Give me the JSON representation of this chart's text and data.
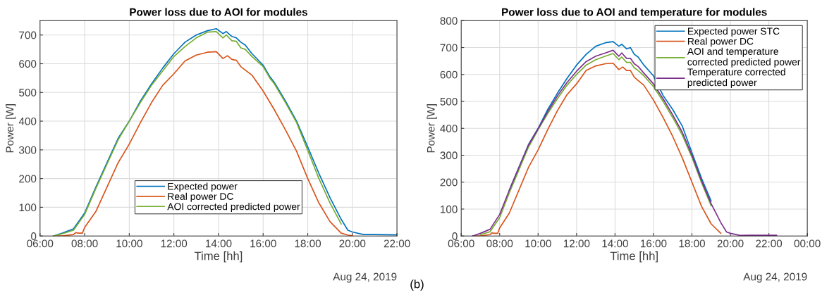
{
  "chart_data": [
    {
      "type": "line",
      "title": "Power loss due to AOI for modules",
      "xlabel": "Time [hh]",
      "ylabel": "Power [W]",
      "annotations": [
        "Aug 24, 2019"
      ],
      "xlim": [
        6,
        22
      ],
      "xticks": [
        {
          "value": 6,
          "label": "06:00"
        },
        {
          "value": 8,
          "label": "08:00"
        },
        {
          "value": 10,
          "label": "10:00"
        },
        {
          "value": 12,
          "label": "12:00"
        },
        {
          "value": 14,
          "label": "14:00"
        },
        {
          "value": 16,
          "label": "16:00"
        },
        {
          "value": 18,
          "label": "18:00"
        },
        {
          "value": 20,
          "label": "20:00"
        },
        {
          "value": 22,
          "label": "22:00"
        }
      ],
      "ylim": [
        0,
        750
      ],
      "yticks": [
        0,
        100,
        200,
        300,
        400,
        500,
        600,
        700
      ],
      "grid": true,
      "legend": "lower center",
      "series": [
        {
          "name": "Expected power",
          "color": "#0072bd",
          "x": [
            6.6,
            7.0,
            7.5,
            8.0,
            8.5,
            9.0,
            9.5,
            10.0,
            10.5,
            11.0,
            11.5,
            12.0,
            12.5,
            13.0,
            13.5,
            13.9,
            14.2,
            14.35,
            14.6,
            14.8,
            15.0,
            15.2,
            15.5,
            16.0,
            16.3,
            16.5,
            17.0,
            17.5,
            18.0,
            18.5,
            19.0,
            19.5,
            19.8,
            20.0,
            20.5,
            21.0,
            22.0
          ],
          "values": [
            0,
            10,
            25,
            80,
            170,
            255,
            340,
            400,
            470,
            530,
            585,
            635,
            675,
            700,
            715,
            722,
            705,
            712,
            695,
            690,
            675,
            665,
            635,
            595,
            555,
            535,
            470,
            400,
            310,
            218,
            133,
            58,
            20,
            14,
            5,
            5,
            4
          ]
        },
        {
          "name": "Real power DC",
          "color": "#d95319",
          "x": [
            6.6,
            7.0,
            7.5,
            7.6,
            7.7,
            7.9,
            8.0,
            8.5,
            9.0,
            9.5,
            10.0,
            10.5,
            11.0,
            11.5,
            12.0,
            12.5,
            13.0,
            13.5,
            13.9,
            14.2,
            14.4,
            14.6,
            14.8,
            15.0,
            15.5,
            16.0,
            16.5,
            17.0,
            17.5,
            18.0,
            18.5,
            19.0,
            19.5,
            19.8,
            20.0
          ],
          "values": [
            0,
            0,
            5,
            12,
            10,
            10,
            30,
            85,
            170,
            255,
            320,
            395,
            465,
            525,
            565,
            610,
            630,
            640,
            642,
            618,
            628,
            615,
            612,
            590,
            560,
            505,
            440,
            370,
            295,
            200,
            115,
            50,
            10,
            3,
            1
          ]
        },
        {
          "name": "AOI corrected predicted power",
          "color": "#77ac30",
          "x": [
            6.6,
            7.0,
            7.5,
            8.0,
            8.5,
            9.0,
            9.5,
            10.0,
            10.5,
            11.0,
            11.5,
            12.0,
            12.5,
            13.0,
            13.5,
            13.9,
            14.2,
            14.35,
            14.6,
            14.8,
            15.0,
            15.2,
            15.5,
            16.0,
            16.3,
            16.5,
            17.0,
            17.5,
            18.0,
            18.5,
            19.0,
            19.5
          ],
          "values": [
            0,
            8,
            20,
            75,
            165,
            250,
            335,
            400,
            465,
            525,
            575,
            625,
            660,
            690,
            710,
            712,
            690,
            700,
            680,
            678,
            655,
            650,
            625,
            590,
            550,
            530,
            465,
            395,
            298,
            200,
            115,
            42
          ]
        }
      ]
    },
    {
      "type": "line",
      "title": "Power loss due to AOI and temperature for modules",
      "xlabel": "Time [hh]",
      "ylabel": "Power [W]",
      "annotations": [
        "Aug 24, 2019",
        "(b)"
      ],
      "xlim": [
        6,
        24
      ],
      "xticks": [
        {
          "value": 6,
          "label": "06:00"
        },
        {
          "value": 8,
          "label": "08:00"
        },
        {
          "value": 10,
          "label": "10:00"
        },
        {
          "value": 12,
          "label": "12:00"
        },
        {
          "value": 14,
          "label": "14:00"
        },
        {
          "value": 16,
          "label": "16:00"
        },
        {
          "value": 18,
          "label": "18:00"
        },
        {
          "value": 20,
          "label": "20:00"
        },
        {
          "value": 22,
          "label": "22:00"
        },
        {
          "value": 24,
          "label": "00:00"
        }
      ],
      "ylim": [
        0,
        800
      ],
      "yticks": [
        0,
        100,
        200,
        300,
        400,
        500,
        600,
        700,
        800
      ],
      "grid": true,
      "legend": "upper right",
      "series": [
        {
          "name": "Expected power STC",
          "color": "#0072bd",
          "x": [
            8.5,
            9.0,
            9.5,
            10.0,
            10.5,
            11.0,
            11.5,
            12.0,
            12.5,
            13.0,
            13.5,
            13.9,
            14.2,
            14.35,
            14.6,
            14.8,
            15.0,
            15.2,
            15.5,
            16.0,
            16.5,
            17.0,
            17.5,
            18.0,
            18.5,
            19.0
          ],
          "values": [
            170,
            255,
            340,
            400,
            470,
            530,
            585,
            635,
            675,
            705,
            718,
            722,
            705,
            712,
            695,
            700,
            675,
            665,
            635,
            595,
            522,
            470,
            408,
            310,
            214,
            130
          ]
        },
        {
          "name": "Real power DC",
          "color": "#d95319",
          "x": [
            6.6,
            7.0,
            7.5,
            7.6,
            7.7,
            7.9,
            8.0,
            8.5,
            9.0,
            9.5,
            10.0,
            10.5,
            11.0,
            11.5,
            12.0,
            12.5,
            13.0,
            13.5,
            13.9,
            14.2,
            14.4,
            14.6,
            14.8,
            15.0,
            15.5,
            16.0,
            16.5,
            17.0,
            17.5,
            18.0,
            18.5,
            19.0,
            19.5
          ],
          "values": [
            0,
            0,
            5,
            12,
            10,
            10,
            30,
            85,
            170,
            255,
            320,
            395,
            465,
            525,
            565,
            615,
            632,
            640,
            642,
            618,
            628,
            615,
            615,
            590,
            560,
            505,
            440,
            370,
            290,
            200,
            110,
            45,
            10
          ]
        },
        {
          "name": "AOI and temperature\ncorrected predicted power",
          "color": "#77ac30",
          "x": [
            7.0,
            7.5,
            8.0,
            8.5,
            9.0,
            9.5,
            10.0,
            10.5,
            11.0,
            11.5,
            12.0,
            12.5,
            13.0,
            13.5,
            13.9,
            14.2,
            14.35,
            14.6,
            14.8,
            15.0,
            15.2,
            15.5,
            16.0,
            16.5,
            17.0,
            17.5,
            18.0,
            18.5,
            19.0
          ],
          "values": [
            5,
            16,
            68,
            160,
            245,
            330,
            395,
            455,
            510,
            560,
            600,
            635,
            655,
            668,
            678,
            655,
            665,
            645,
            645,
            625,
            615,
            595,
            555,
            500,
            440,
            375,
            292,
            198,
            112
          ]
        },
        {
          "name": "Temperature corrected\npredicted power",
          "color": "#7e2f8e",
          "x": [
            6.6,
            7.0,
            7.5,
            8.0,
            8.5,
            9.0,
            9.5,
            10.0,
            10.5,
            11.0,
            11.5,
            12.0,
            12.5,
            13.0,
            13.5,
            13.9,
            14.2,
            14.35,
            14.6,
            14.8,
            15.0,
            15.2,
            15.5,
            16.0,
            16.5,
            17.0,
            17.5,
            18.0,
            18.5,
            19.0,
            19.5,
            19.8,
            20.0,
            20.5,
            21.0,
            22.4
          ],
          "values": [
            0,
            10,
            25,
            80,
            170,
            255,
            338,
            398,
            462,
            520,
            570,
            612,
            648,
            668,
            680,
            690,
            668,
            680,
            660,
            660,
            640,
            630,
            605,
            565,
            510,
            450,
            385,
            300,
            205,
            120,
            50,
            15,
            10,
            2,
            3,
            3
          ]
        }
      ]
    }
  ]
}
